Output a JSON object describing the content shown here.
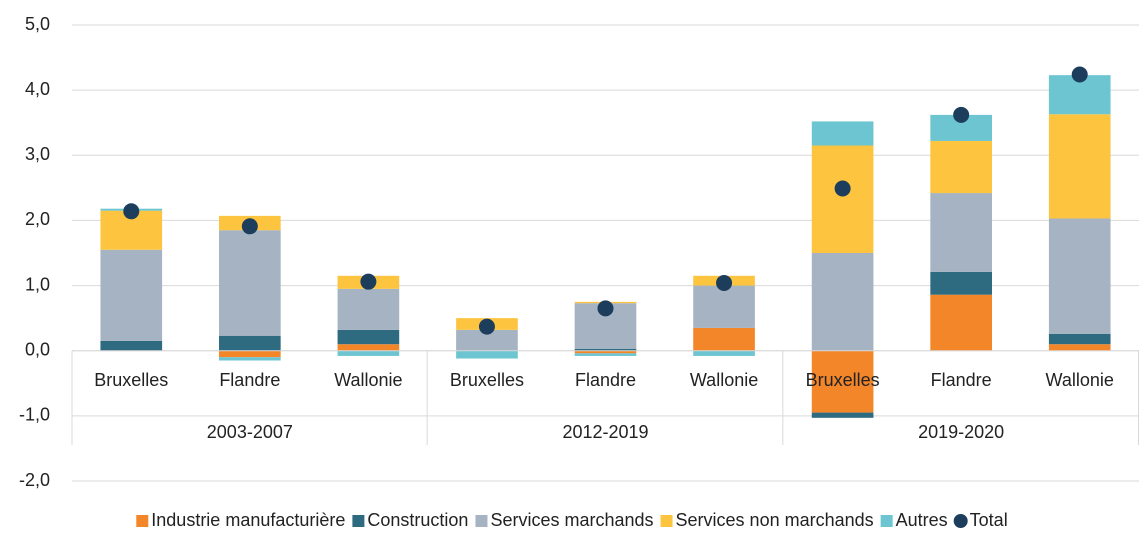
{
  "chart_data": {
    "type": "stacked_bar",
    "categories": [
      "Bruxelles",
      "Flandre",
      "Wallonie",
      "Bruxelles",
      "Flandre",
      "Wallonie",
      "Bruxelles",
      "Flandre",
      "Wallonie"
    ],
    "groups": [
      {
        "label": "2003-2007",
        "size": 3
      },
      {
        "label": "2012-2019",
        "size": 3
      },
      {
        "label": "2019-2020",
        "size": 3
      }
    ],
    "series": [
      {
        "name": "Industrie manufacturière",
        "color": "#f4862a",
        "values": [
          0,
          -0.1,
          0.1,
          0,
          -0.04,
          0.35,
          -0.95,
          0.86,
          0.1
        ]
      },
      {
        "name": "Construction",
        "color": "#2e6b80",
        "values": [
          0.15,
          0.23,
          0.22,
          0,
          0.03,
          0,
          -0.08,
          0.35,
          0.16
        ]
      },
      {
        "name": "Services marchands",
        "color": "#a6b3c2",
        "values": [
          1.4,
          1.62,
          0.63,
          0.32,
          0.7,
          0.65,
          1.5,
          1.21,
          1.77
        ]
      },
      {
        "name": "Services non marchands",
        "color": "#fdc43f",
        "values": [
          0.6,
          0.22,
          0.2,
          0.18,
          0.02,
          0.15,
          1.65,
          0.8,
          1.6
        ]
      },
      {
        "name": "Autres",
        "color": "#6cc5d1",
        "values": [
          0.03,
          -0.05,
          -0.08,
          -0.12,
          -0.04,
          -0.08,
          0.37,
          0.4,
          0.6
        ]
      },
      {
        "name": "Total",
        "color": "#1c3d5c",
        "type": "dot",
        "values": [
          2.14,
          1.91,
          1.06,
          0.37,
          0.65,
          1.04,
          2.49,
          3.62,
          4.24
        ]
      }
    ],
    "ylim": [
      -2,
      5
    ],
    "yticks": [
      {
        "value": -2,
        "label": "-2,0"
      },
      {
        "value": -1,
        "label": "-1,0"
      },
      {
        "value": 0,
        "label": "0,0"
      },
      {
        "value": 1,
        "label": "1,0"
      },
      {
        "value": 2,
        "label": "2,0"
      },
      {
        "value": 3,
        "label": "3,0"
      },
      {
        "value": 4,
        "label": "4,0"
      },
      {
        "value": 5,
        "label": "5,0"
      }
    ],
    "grid": true,
    "legend": "bottom"
  }
}
